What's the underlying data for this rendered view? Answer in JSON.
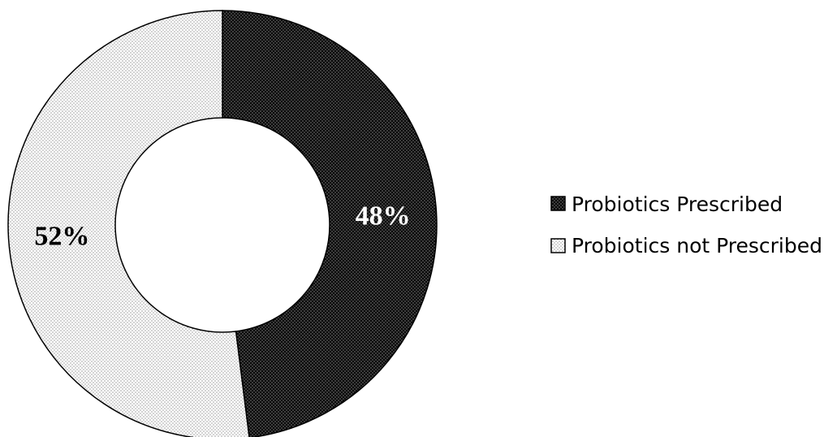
{
  "chart_data": {
    "type": "pie",
    "variant": "donut",
    "title": "",
    "slices": [
      {
        "name": "Probiotics Prescribed",
        "value": 48,
        "label": "48%",
        "fill": "dark-dotted"
      },
      {
        "name": "Probiotics not Prescribed",
        "value": 52,
        "label": "52%",
        "fill": "light-dotted"
      }
    ],
    "legend": {
      "placement": "right",
      "entries": [
        "Probiotics Prescribed",
        "Probiotics not Prescribed"
      ]
    }
  },
  "colors": {
    "dark_slice": "#111111",
    "light_slice": "#ffffff",
    "outline": "#000000",
    "dark_label": "#ffffff",
    "light_label": "#000000"
  }
}
